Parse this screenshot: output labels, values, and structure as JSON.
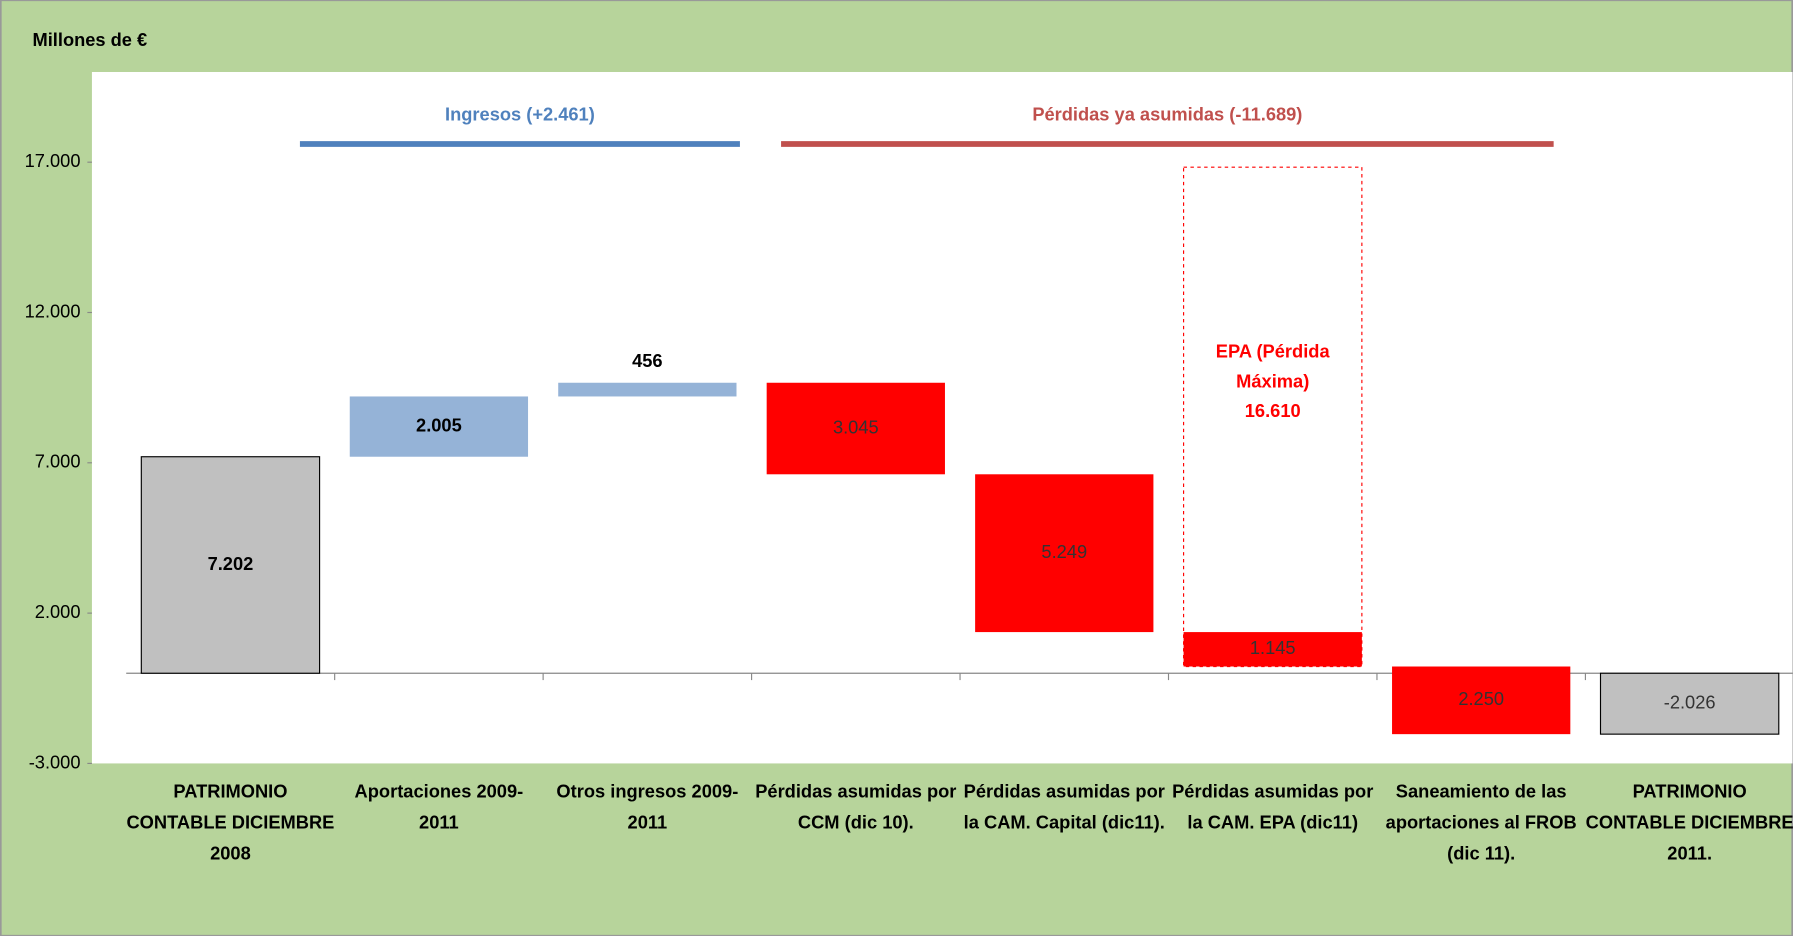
{
  "chart_data": {
    "type": "waterfall",
    "title": "Millones de €",
    "categories": [
      "PATRIMONIO CONTABLE DICIEMBRE 2008",
      "Aportaciones 2009-2011",
      "Otros ingresos 2009-2011",
      "Pérdidas asumidas por CCM (dic 10).",
      "Pérdidas asumidas por la CAM. Capital (dic11).",
      "Pérdidas asumidas por la CAM. EPA (dic11)",
      "Saneamiento de las aportaciones al FROB (dic 11).",
      "PATRIMONIO CONTABLE DICIEMBRE 2011."
    ],
    "values": [
      7202,
      2005,
      456,
      -3045,
      -5249,
      -1145,
      -2250,
      -2026
    ],
    "value_labels": [
      "7.202",
      "2.005",
      "456",
      "3.045",
      "5.249",
      "1.145",
      "2.250",
      "-2.026"
    ],
    "measures": [
      "total",
      "relative",
      "relative",
      "relative",
      "relative",
      "relative",
      "relative",
      "total"
    ],
    "colors": [
      "#c0c0c0",
      "#95b3d7",
      "#95b3d7",
      "#ff0000",
      "#ff0000",
      "#ff0000",
      "#ff0000",
      "#c0c0c0"
    ],
    "ylim": [
      -3000,
      20000
    ],
    "yticks": [
      {
        "value": -3000,
        "label": "-3.000"
      },
      {
        "value": 2000,
        "label": "2.000"
      },
      {
        "value": 7000,
        "label": "7.000"
      },
      {
        "value": 12000,
        "label": "12.000"
      },
      {
        "value": 17000,
        "label": "17.000"
      }
    ],
    "annotations": [
      {
        "text": "Ingresos (+2.461)",
        "color": "#4f81bd"
      },
      {
        "text": "Pérdidas ya asumidas (-11.689)",
        "color": "#c0504d"
      }
    ],
    "epa_box": {
      "text": "EPA (Pérdida Máxima)",
      "value": 16610,
      "value_label": "16.610"
    }
  }
}
